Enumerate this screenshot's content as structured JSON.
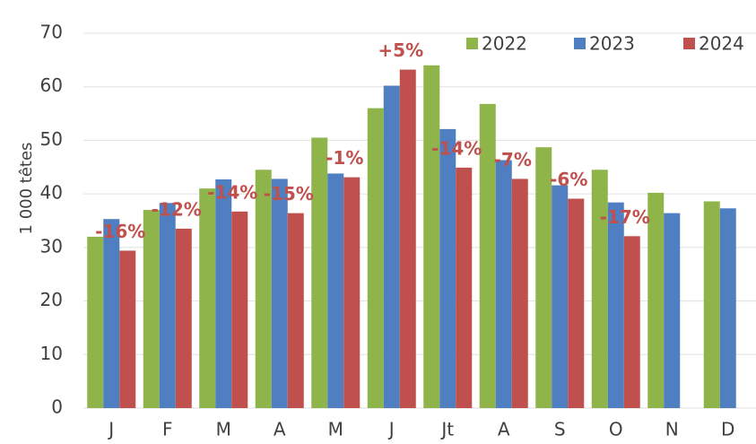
{
  "chart_data": {
    "type": "bar",
    "y_label": "1 000 têtes",
    "categories": [
      "J",
      "F",
      "M",
      "A",
      "M",
      "J",
      "Jt",
      "A",
      "S",
      "O",
      "N",
      "D"
    ],
    "series": [
      {
        "name": "2022",
        "color": "#8eb44a",
        "values": [
          32,
          37,
          41,
          44.5,
          50.5,
          56,
          64,
          56.8,
          48.7,
          44.5,
          40.2,
          38.6
        ]
      },
      {
        "name": "2023",
        "color": "#4f7fc0",
        "values": [
          35.3,
          38.3,
          42.7,
          42.8,
          43.8,
          60.2,
          52.1,
          46.3,
          41.6,
          38.4,
          36.4,
          37.3
        ]
      },
      {
        "name": "2024",
        "color": "#c0504d",
        "values": [
          29.4,
          33.5,
          36.7,
          36.4,
          43.1,
          63.2,
          44.9,
          42.8,
          39.1,
          32.1,
          null,
          null
        ]
      }
    ],
    "annotations": [
      "-16%",
      "-12%",
      "-14%",
      "-15%",
      "-1%",
      "+5%",
      "-14%",
      "-7%",
      "-6%",
      "-17%"
    ],
    "ylim": [
      0,
      70
    ],
    "yticks": [
      0,
      10,
      20,
      30,
      40,
      50,
      60,
      70
    ],
    "grid": true,
    "legend": "top-right"
  }
}
